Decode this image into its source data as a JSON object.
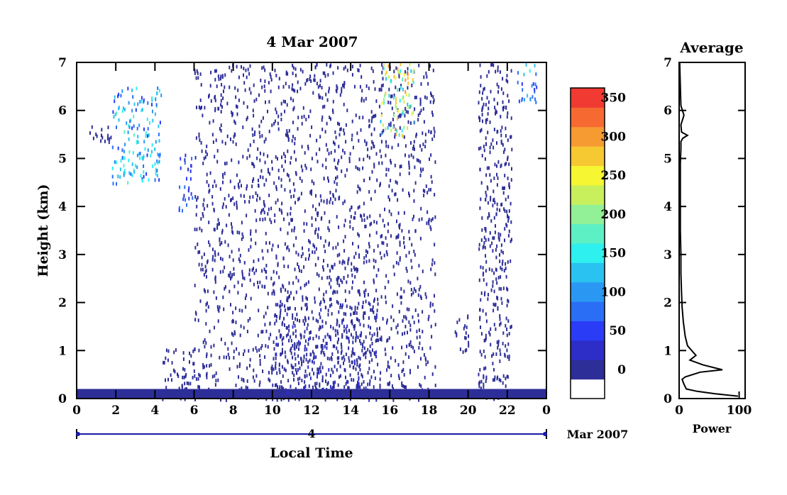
{
  "title": "4 Mar 2007",
  "main_plot": {
    "ylabel": "Height (km)",
    "xlabel": "Local Time",
    "x_ticks": [
      "0",
      "2",
      "4",
      "6",
      "8",
      "10",
      "12",
      "14",
      "16",
      "18",
      "20",
      "22",
      "0"
    ],
    "y_ticks": [
      "0",
      "1",
      "2",
      "3",
      "4",
      "5",
      "6",
      "7"
    ],
    "date_axis": {
      "day_label": "4",
      "month_label": "Mar 2007"
    }
  },
  "colorbar": {
    "tick_labels": [
      "0",
      "50",
      "100",
      "150",
      "200",
      "250",
      "300",
      "350"
    ],
    "colors": [
      "#ffffff",
      "#2e2e98",
      "#2d2dc8",
      "#2a3cf6",
      "#2a6ef6",
      "#2a98f2",
      "#2ac2f0",
      "#2ef0ee",
      "#5cf0c4",
      "#92f096",
      "#c8f05c",
      "#f6f632",
      "#f6c832",
      "#f69a32",
      "#f66a32",
      "#f03a32"
    ]
  },
  "side_plot": {
    "title": "Average",
    "xlabel": "Power",
    "x_ticks": [
      "0",
      "100"
    ],
    "y_ticks": [
      "0",
      "1",
      "2",
      "3",
      "4",
      "5",
      "6",
      "7"
    ]
  },
  "chart_data": [
    {
      "type": "heatmap",
      "title": "4 Mar 2007",
      "xlabel": "Local Time",
      "ylabel": "Height (km)",
      "xlim": [
        0,
        24
      ],
      "ylim": [
        0,
        7
      ],
      "colorbar_range": [
        0,
        375
      ],
      "regions": [
        {
          "t": [
            0,
            24
          ],
          "h": [
            0,
            0.2
          ],
          "value": 20
        },
        {
          "t": [
            1.8,
            4.3
          ],
          "h": [
            4.5,
            6.5
          ],
          "value": 140
        },
        {
          "t": [
            0.5,
            1.8
          ],
          "h": [
            5.3,
            5.7
          ],
          "value": 10
        },
        {
          "t": [
            4.3,
            6.0
          ],
          "h": [
            0,
            1.1
          ],
          "value": 20
        },
        {
          "t": [
            5.2,
            5.9
          ],
          "h": [
            3.9,
            5.1
          ],
          "value": 80
        },
        {
          "t": [
            6.0,
            18.3
          ],
          "h": [
            0,
            7
          ],
          "value": 15
        },
        {
          "t": [
            10,
            15.5
          ],
          "h": [
            0,
            2
          ],
          "value": 40
        },
        {
          "t": [
            15.5,
            17.2
          ],
          "h": [
            5.5,
            7
          ],
          "value": 240
        },
        {
          "t": [
            19.3,
            20.0
          ],
          "h": [
            1.0,
            1.9
          ],
          "value": 30
        },
        {
          "t": [
            20.5,
            22.2
          ],
          "h": [
            0,
            7
          ],
          "value": 15
        },
        {
          "t": [
            22.5,
            23.5
          ],
          "h": [
            6.2,
            7
          ],
          "value": 120
        }
      ]
    },
    {
      "type": "line",
      "title": "Average",
      "xlabel": "Power",
      "ylabel": "Height (km)",
      "xlim": [
        0,
        110
      ],
      "ylim": [
        0,
        7
      ],
      "x": [
        98,
        60,
        30,
        12,
        8,
        5,
        10,
        35,
        72,
        40,
        18,
        28,
        14,
        10,
        7,
        5,
        4,
        3,
        3,
        2,
        2,
        2,
        2,
        3,
        3,
        6,
        14,
        4,
        3,
        8,
        3,
        2,
        1
      ],
      "y": [
        0.05,
        0.1,
        0.15,
        0.2,
        0.3,
        0.4,
        0.45,
        0.55,
        0.6,
        0.7,
        0.8,
        0.9,
        1.1,
        1.3,
        1.6,
        1.9,
        2.2,
        2.6,
        3.0,
        3.5,
        4.0,
        4.5,
        4.9,
        5.2,
        5.35,
        5.42,
        5.48,
        5.55,
        5.7,
        5.9,
        6.1,
        6.5,
        7.0
      ]
    }
  ]
}
